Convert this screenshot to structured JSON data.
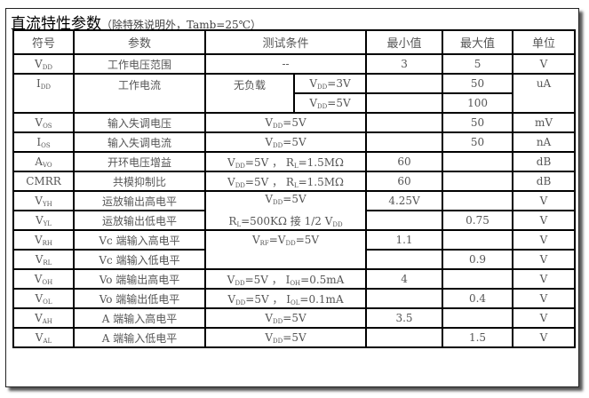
{
  "title": {
    "main": "直流特性参数",
    "note": "（除特殊说明外，Tamb=25℃）"
  },
  "headers": [
    "符号",
    "参数",
    "测试条件",
    "最小值",
    "最大值",
    "单位"
  ],
  "rows": [
    {
      "sym": "V",
      "sub": "DD",
      "param": "工作电压范围",
      "cond": "--",
      "min": "3",
      "max": "5",
      "unit": "V"
    },
    {
      "sym": "I",
      "sub": "DD",
      "param": "工作电流",
      "cond": "无负载",
      "cond_a": [
        "V",
        "DD",
        "=3V"
      ],
      "cond_b": [
        "V",
        "DD",
        "=5V"
      ],
      "max": "50",
      "max_b": "100",
      "unit": "uA"
    },
    {
      "sym": "V",
      "sub": "OS",
      "param": "输入失调电压",
      "cond": [
        "V",
        "DD",
        "=5V"
      ],
      "max": "50",
      "unit": "mV"
    },
    {
      "sym": "I",
      "sub": "OS",
      "param": "输入失调电流",
      "cond": [
        "V",
        "DD",
        "=5V"
      ],
      "max": "50",
      "unit": "nA"
    },
    {
      "sym": "A",
      "sub": "VO",
      "param": "开环电压增益",
      "cond": [
        "V",
        "DD",
        "=5V ， R",
        "L",
        "=1.5MΩ"
      ],
      "min": "60",
      "unit": "dB"
    },
    {
      "sym": "CMRR",
      "sub": "",
      "param": "共模抑制比",
      "cond": [
        "V",
        "DD",
        "=5V ， R",
        "L",
        "=1.5MΩ"
      ],
      "min": "60",
      "unit": "dB"
    },
    {
      "sym": "V",
      "sub": "YH",
      "param": "运放输出高电平",
      "cond": [
        "V",
        "DD",
        "=5V"
      ],
      "cond_b": [
        "R",
        "L",
        "=500KΩ 接 1/2 V",
        "DD"
      ],
      "min": "4.25V",
      "unit": "V"
    },
    {
      "sym": "V",
      "sub": "YL",
      "param": "运放输出低电平",
      "max": "0.75",
      "unit": "V"
    },
    {
      "sym": "V",
      "sub": "RH",
      "param": "Vc 端输入高电平",
      "cond": [
        "V",
        "RF",
        "=V",
        "DD",
        "=5V"
      ],
      "min": "1.1",
      "unit": "V"
    },
    {
      "sym": "V",
      "sub": "RL",
      "param": "Vc 端输入低电平",
      "max": "0.9",
      "unit": "V"
    },
    {
      "sym": "V",
      "sub": "OH",
      "param": "Vo 端输出高电平",
      "cond": [
        "V",
        "DD",
        "=5V ， I",
        "OH",
        "=0.5mA"
      ],
      "min": "4",
      "unit": "V"
    },
    {
      "sym": "V",
      "sub": "OL",
      "param": "Vo 端输出低电平",
      "cond": [
        "V",
        "DD",
        "=5V ， I",
        "OL",
        "=0.1mA"
      ],
      "max": "0.4",
      "unit": "V"
    },
    {
      "sym": "V",
      "sub": "AH",
      "param": "A 端输入高电平",
      "cond": [
        "V",
        "DD",
        "=5V"
      ],
      "min": "3.5",
      "unit": "V"
    },
    {
      "sym": "V",
      "sub": "AL",
      "param": "A 端输入低电平",
      "cond": [
        "V",
        "DD",
        "=5V"
      ],
      "max": "1.5",
      "unit": "V"
    }
  ]
}
